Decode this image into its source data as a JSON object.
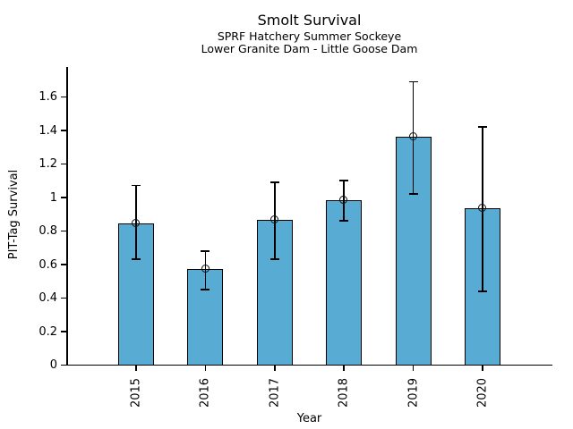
{
  "chart_data": {
    "type": "bar",
    "title": "Smolt Survival",
    "subtitle_line1": "SPRF Hatchery Summer Sockeye",
    "subtitle_line2": "Lower Granite Dam - Little Goose Dam",
    "xlabel": "Year",
    "ylabel": "PIT-Tag Survival",
    "categories": [
      "2015",
      "2016",
      "2017",
      "2018",
      "2019",
      "2020"
    ],
    "values": [
      0.84,
      0.57,
      0.86,
      0.98,
      1.36,
      0.93
    ],
    "error_low": [
      0.63,
      0.45,
      0.63,
      0.86,
      1.02,
      0.44
    ],
    "error_high": [
      1.07,
      0.68,
      1.09,
      1.1,
      1.69,
      1.42
    ],
    "yticks": [
      0,
      0.2,
      0.4,
      0.6,
      0.8,
      1,
      1.2,
      1.4,
      1.6
    ],
    "ylim": [
      0,
      1.77
    ],
    "grid": false,
    "legend": null,
    "marker": "open-circle",
    "bar_color": "#58ABD3",
    "bar_edge_color": "#000000",
    "error_color": "#000000",
    "axis_color": "#000000",
    "background_color": "#ffffff"
  }
}
